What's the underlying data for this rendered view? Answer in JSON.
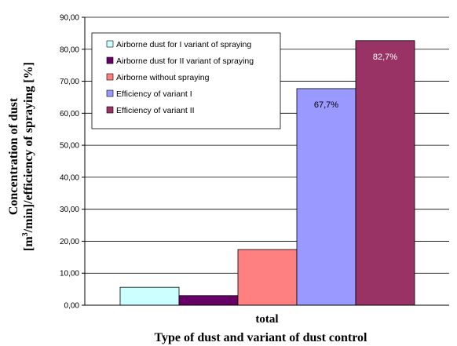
{
  "chart_data": {
    "type": "bar",
    "categories": [
      "total"
    ],
    "series": [
      {
        "name": "Airborne dust for I variant of spraying",
        "values": [
          5.6
        ],
        "color": "#CCFFFF",
        "label": ""
      },
      {
        "name": "Airborne  dust for II variant of spraying",
        "values": [
          3.0
        ],
        "color": "#660066",
        "label": ""
      },
      {
        "name": "Airborne without spraying",
        "values": [
          17.4
        ],
        "color": "#FF8080",
        "label": ""
      },
      {
        "name": "Efficiency of variant I",
        "values": [
          67.7
        ],
        "color": "#9999FF",
        "label": "67,7%"
      },
      {
        "name": "Efficiency of variant II",
        "values": [
          82.7
        ],
        "color": "#993366",
        "label": "82,7%"
      }
    ],
    "xlabel": "Type of dust and variant of dust control",
    "ylabel_line1": "Concentration of dust",
    "ylabel_line2_prefix": "[m",
    "ylabel_line2_sup": "3",
    "ylabel_line2_suffix": "/min]/efficiency of spraying [%]",
    "ylim": [
      0,
      90
    ],
    "yticks": [
      "0,00",
      "10,00",
      "20,00",
      "30,00",
      "40,00",
      "50,00",
      "60,00",
      "70,00",
      "80,00",
      "90,00"
    ],
    "grid": true,
    "legend_position": "top-left"
  }
}
